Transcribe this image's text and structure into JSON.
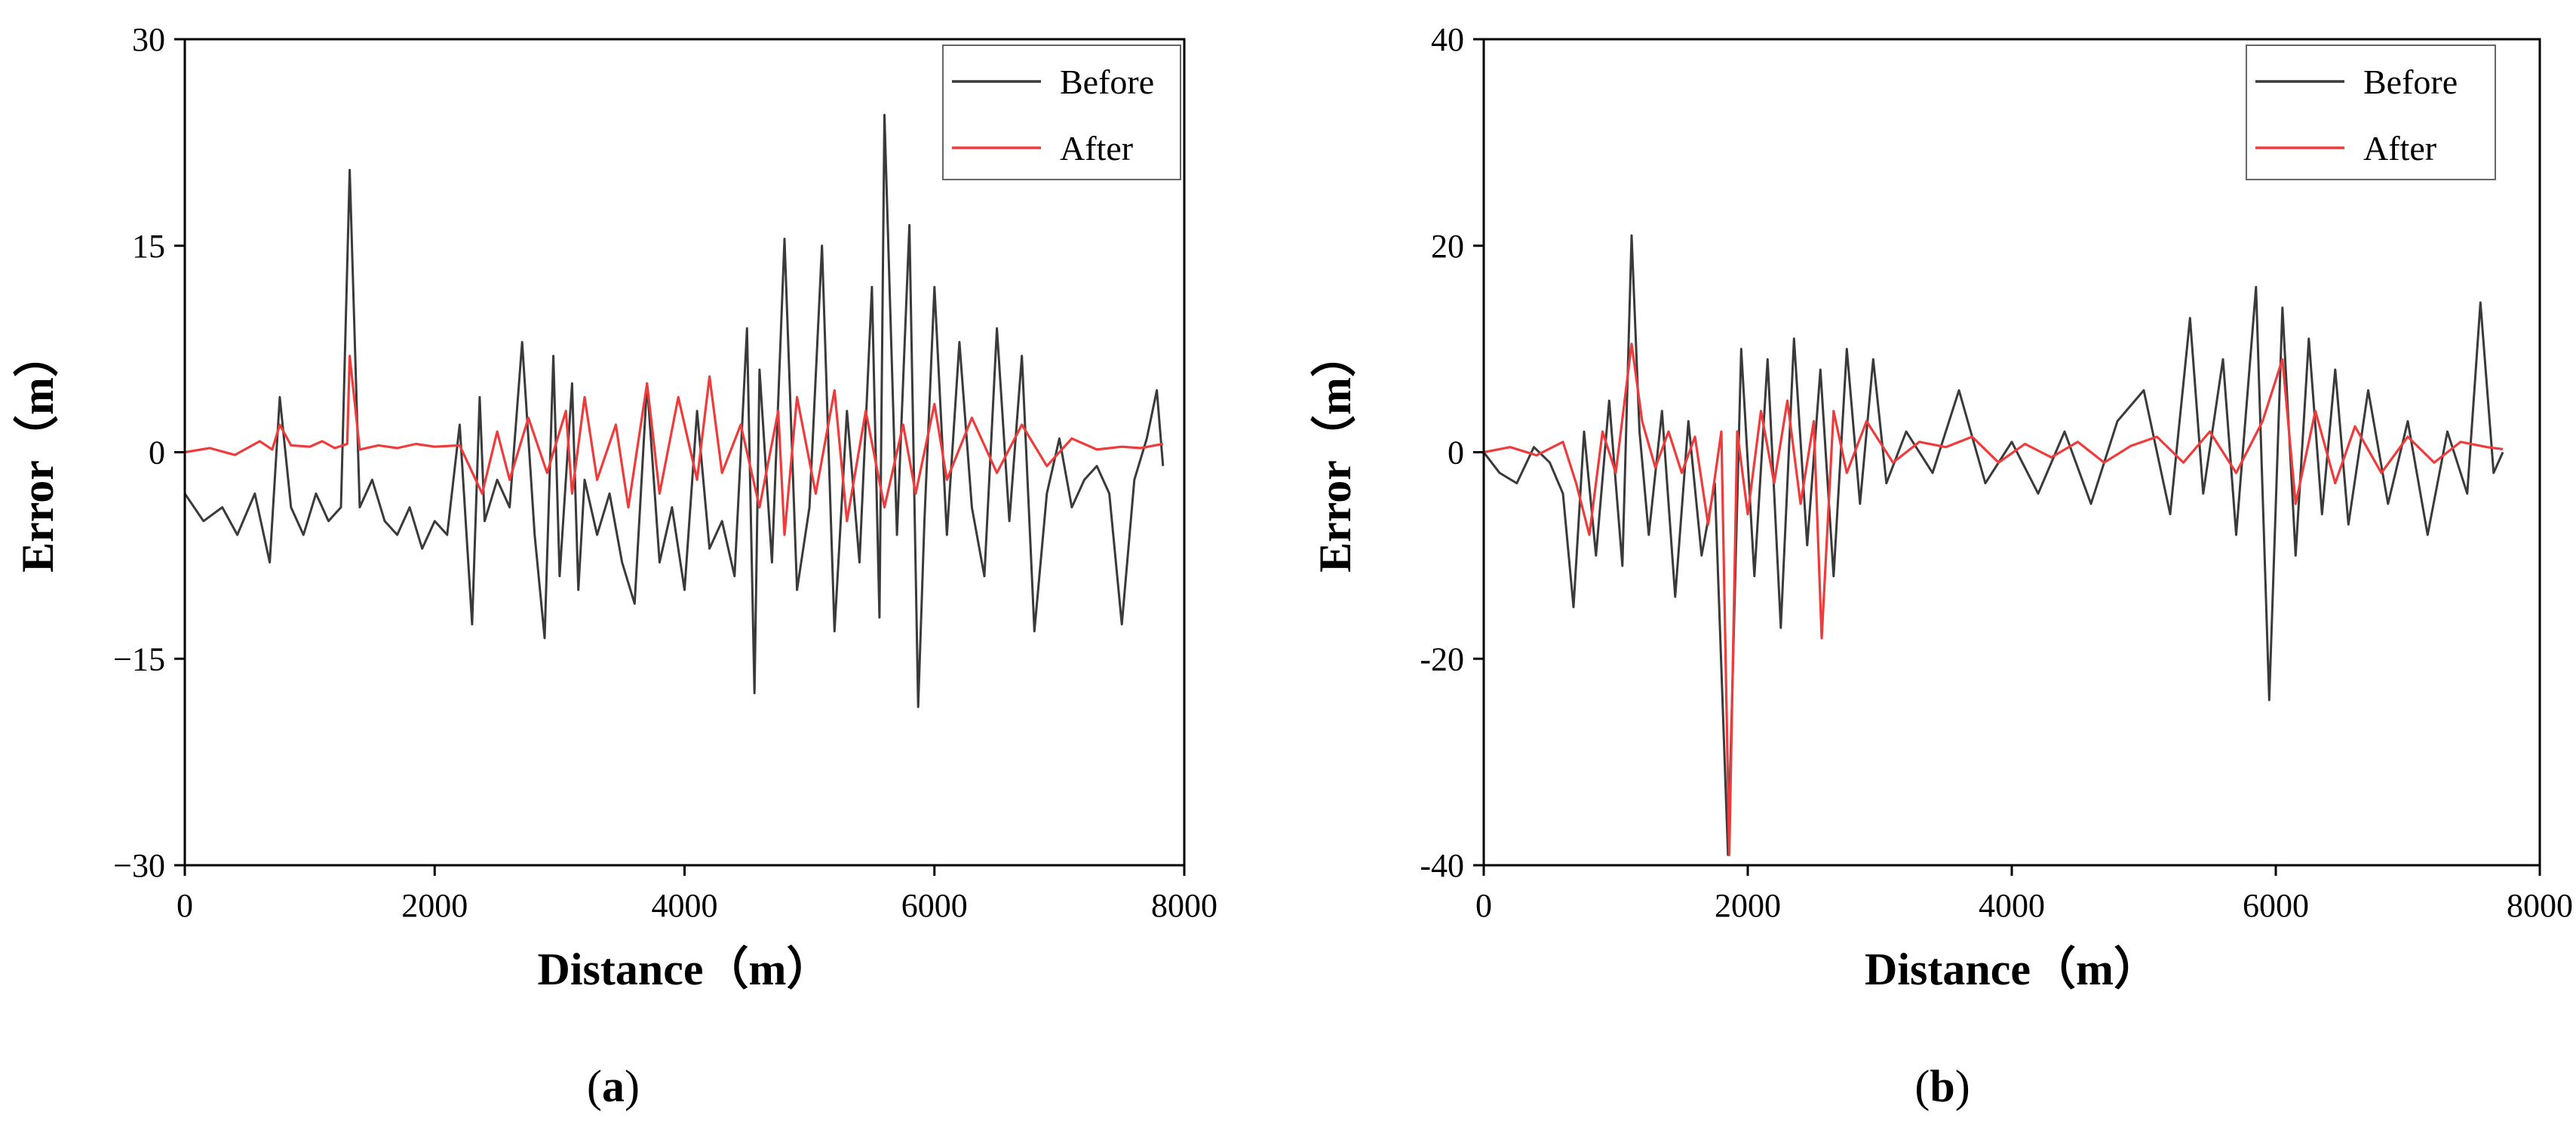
{
  "chart_data": [
    {
      "type": "line",
      "panel_label": "(a)",
      "xlabel": "Distance（m）",
      "ylabel": "Error（m）",
      "xlim": [
        0,
        8000
      ],
      "ylim": [
        -30,
        30
      ],
      "xticks": [
        0,
        2000,
        4000,
        6000,
        8000
      ],
      "yticks": [
        -30,
        -15,
        0,
        15,
        30
      ],
      "ytick_labels": [
        "−30",
        "−15",
        "0",
        "15",
        "30"
      ],
      "legend_position": "top-right",
      "series": [
        {
          "name": "Before",
          "color": "#3a3a3a",
          "x": [
            0,
            150,
            300,
            420,
            560,
            680,
            760,
            850,
            950,
            1050,
            1150,
            1250,
            1320,
            1400,
            1500,
            1600,
            1700,
            1800,
            1900,
            2000,
            2100,
            2200,
            2300,
            2360,
            2400,
            2500,
            2600,
            2700,
            2800,
            2880,
            2950,
            3000,
            3100,
            3150,
            3200,
            3300,
            3400,
            3500,
            3600,
            3700,
            3800,
            3900,
            4000,
            4100,
            4200,
            4300,
            4400,
            4500,
            4560,
            4600,
            4700,
            4800,
            4900,
            5000,
            5100,
            5200,
            5300,
            5400,
            5500,
            5560,
            5600,
            5700,
            5800,
            5870,
            5920,
            6000,
            6100,
            6200,
            6300,
            6400,
            6500,
            6600,
            6700,
            6800,
            6900,
            7000,
            7100,
            7200,
            7300,
            7400,
            7500,
            7600,
            7700,
            7780,
            7830
          ],
          "y": [
            -3,
            -5,
            -4,
            -6,
            -3,
            -8,
            4,
            -4,
            -6,
            -3,
            -5,
            -4,
            20.5,
            -4,
            -2,
            -5,
            -6,
            -4,
            -7,
            -5,
            -6,
            2,
            -12.5,
            4,
            -5,
            -2,
            -4,
            8,
            -6,
            -13.5,
            7,
            -9,
            5,
            -10,
            -2,
            -6,
            -3,
            -8,
            -11,
            5,
            -8,
            -4,
            -10,
            3,
            -7,
            -5,
            -9,
            9,
            -17.5,
            6,
            -8,
            15.5,
            -10,
            -4,
            15,
            -13,
            3,
            -8,
            12,
            -12,
            24.5,
            -6,
            16.5,
            -18.5,
            -5,
            12,
            -6,
            8,
            -4,
            -9,
            9,
            -5,
            7,
            -13,
            -3,
            1,
            -4,
            -2,
            -1,
            -3,
            -12.5,
            -2,
            1,
            4.5,
            -1
          ]
        },
        {
          "name": "After",
          "color": "#ee3b3b",
          "x": [
            0,
            200,
            400,
            600,
            700,
            760,
            850,
            1000,
            1100,
            1200,
            1300,
            1320,
            1400,
            1550,
            1700,
            1850,
            2000,
            2200,
            2380,
            2500,
            2600,
            2750,
            2900,
            3050,
            3100,
            3200,
            3300,
            3450,
            3550,
            3700,
            3800,
            3950,
            4100,
            4200,
            4300,
            4450,
            4600,
            4750,
            4800,
            4900,
            5050,
            5200,
            5300,
            5450,
            5600,
            5750,
            5850,
            6000,
            6100,
            6300,
            6500,
            6700,
            6900,
            7100,
            7300,
            7500,
            7650,
            7830
          ],
          "y": [
            0,
            0.3,
            -0.2,
            0.8,
            0.2,
            2,
            0.5,
            0.4,
            0.8,
            0.3,
            0.6,
            7,
            0.2,
            0.5,
            0.3,
            0.6,
            0.4,
            0.5,
            -3,
            1.5,
            -2,
            2.5,
            -1.5,
            3,
            -3,
            4,
            -2,
            2,
            -4,
            5,
            -3,
            4,
            -2,
            5.5,
            -1.5,
            2,
            -4,
            3,
            -6,
            4,
            -3,
            4.5,
            -5,
            3,
            -4,
            2,
            -3,
            3.5,
            -2,
            2.5,
            -1.5,
            2,
            -1,
            1,
            0.2,
            0.4,
            0.3,
            0.6
          ]
        }
      ]
    },
    {
      "type": "line",
      "panel_label": "(b)",
      "xlabel": "Distance（m）",
      "ylabel": "Error（m）",
      "xlim": [
        0,
        8000
      ],
      "ylim": [
        -40,
        40
      ],
      "xticks": [
        0,
        2000,
        4000,
        6000,
        8000
      ],
      "yticks": [
        -40,
        -20,
        0,
        20,
        40
      ],
      "ytick_labels": [
        "-40",
        "-20",
        "0",
        "20",
        "40"
      ],
      "legend_position": "top-right",
      "series": [
        {
          "name": "Before",
          "color": "#3a3a3a",
          "x": [
            0,
            120,
            250,
            380,
            500,
            600,
            680,
            760,
            850,
            950,
            1050,
            1120,
            1180,
            1250,
            1350,
            1450,
            1550,
            1650,
            1750,
            1850,
            1950,
            2050,
            2150,
            2250,
            2350,
            2450,
            2550,
            2650,
            2750,
            2850,
            2950,
            3050,
            3200,
            3400,
            3600,
            3800,
            4000,
            4200,
            4400,
            4600,
            4800,
            5000,
            5200,
            5350,
            5450,
            5600,
            5700,
            5850,
            5950,
            6050,
            6150,
            6250,
            6350,
            6450,
            6550,
            6700,
            6850,
            7000,
            7150,
            7300,
            7450,
            7550,
            7650,
            7720
          ],
          "y": [
            0,
            -2,
            -3,
            0.5,
            -1,
            -4,
            -15,
            2,
            -10,
            5,
            -11,
            21,
            2,
            -8,
            4,
            -14,
            3,
            -10,
            -3,
            -39,
            10,
            -12,
            9,
            -17,
            11,
            -9,
            8,
            -12,
            10,
            -5,
            9,
            -3,
            2,
            -2,
            6,
            -3,
            1,
            -4,
            2,
            -5,
            3,
            6,
            -6,
            13,
            -4,
            9,
            -8,
            16,
            -24,
            14,
            -10,
            11,
            -6,
            8,
            -7,
            6,
            -5,
            3,
            -8,
            2,
            -4,
            14.5,
            -2,
            0
          ]
        },
        {
          "name": "After",
          "color": "#ee3b3b",
          "x": [
            0,
            200,
            400,
            600,
            700,
            800,
            900,
            1000,
            1120,
            1200,
            1300,
            1400,
            1500,
            1600,
            1700,
            1800,
            1860,
            1920,
            2000,
            2100,
            2200,
            2300,
            2400,
            2500,
            2560,
            2650,
            2750,
            2900,
            3100,
            3300,
            3500,
            3700,
            3900,
            4100,
            4300,
            4500,
            4700,
            4900,
            5100,
            5300,
            5500,
            5700,
            5900,
            6050,
            6150,
            6300,
            6450,
            6600,
            6800,
            7000,
            7200,
            7400,
            7600,
            7720
          ],
          "y": [
            0,
            0.5,
            -0.3,
            1,
            -3,
            -8,
            2,
            -2,
            10.5,
            3,
            -1.5,
            2,
            -2,
            1.5,
            -7,
            2,
            -39,
            2,
            -6,
            4,
            -3,
            5,
            -5,
            3,
            -18,
            4,
            -2,
            3,
            -1,
            1,
            0.5,
            1.5,
            -1,
            0.8,
            -0.5,
            1,
            -1,
            0.6,
            1.5,
            -1,
            2,
            -2,
            3,
            9,
            -5,
            4,
            -3,
            2.5,
            -2,
            1.5,
            -1,
            1,
            0.5,
            0.3
          ]
        }
      ]
    }
  ]
}
